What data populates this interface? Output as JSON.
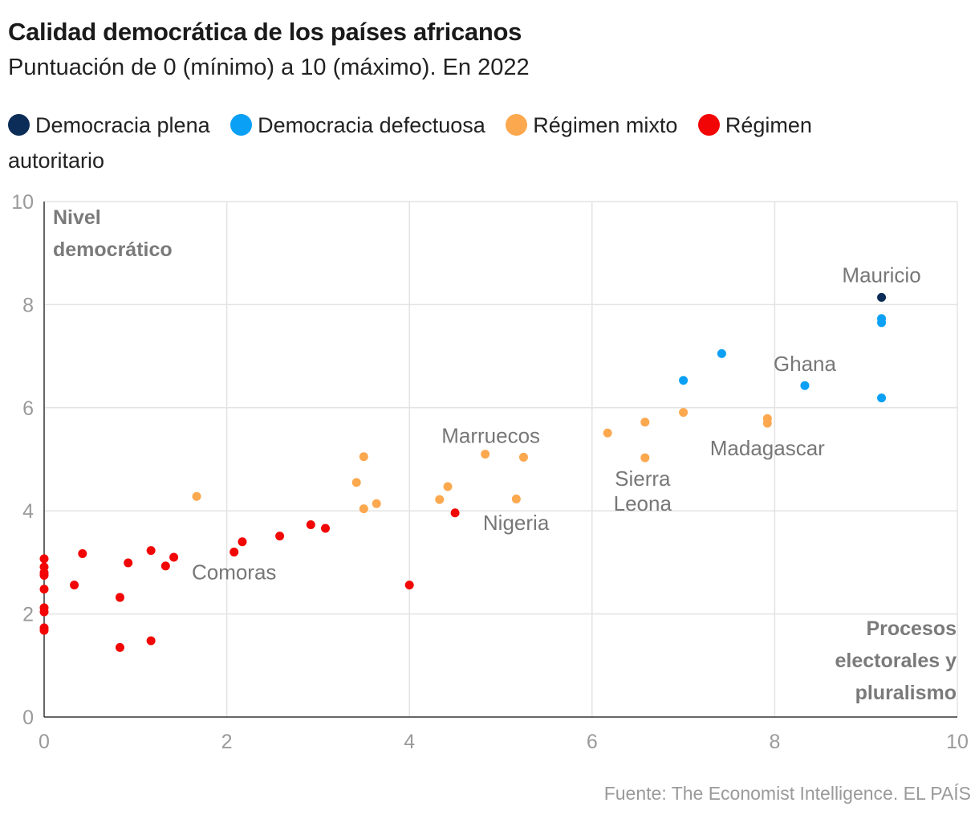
{
  "header": {
    "title": "Calidad democrática de los países africanos",
    "subtitle": "Puntuación de 0 (mínimo) a 10 (máximo). En 2022"
  },
  "legend": [
    {
      "label": "Democracia plena",
      "color": "#0b2d57"
    },
    {
      "label": "Democracia defectuosa",
      "color": "#0aa0f5"
    },
    {
      "label": "Régimen mixto",
      "color": "#fca84f"
    },
    {
      "label": "Régimen autoritario",
      "color": "#f20505"
    }
  ],
  "source": "Fuente: The Economist Intelligence. EL PAÍS",
  "chart_data": {
    "type": "scatter",
    "title": "Calidad democrática de los países africanos",
    "subtitle": "Puntuación de 0 (mínimo) a 10 (máximo). En 2022",
    "xlabel": "Procesos electorales y pluralismo",
    "ylabel": "Nivel democrático",
    "xlim": [
      0,
      10
    ],
    "ylim": [
      0,
      10
    ],
    "xticks": [
      0,
      2,
      4,
      6,
      8,
      10
    ],
    "yticks": [
      0,
      2,
      4,
      6,
      8,
      10
    ],
    "grid": true,
    "legend_position": "top",
    "series": [
      {
        "name": "Democracia plena",
        "color": "#0b2d57",
        "points": [
          [
            9.17,
            8.14
          ]
        ]
      },
      {
        "name": "Democracia defectuosa",
        "color": "#0aa0f5",
        "points": [
          [
            9.17,
            7.73
          ],
          [
            9.17,
            7.65
          ],
          [
            7.42,
            7.05
          ],
          [
            7.0,
            6.53
          ],
          [
            8.33,
            6.43
          ],
          [
            9.17,
            6.19
          ]
        ]
      },
      {
        "name": "Régimen mixto",
        "color": "#fca84f",
        "points": [
          [
            7.0,
            5.91
          ],
          [
            7.92,
            5.79
          ],
          [
            7.92,
            5.7
          ],
          [
            6.58,
            5.72
          ],
          [
            6.17,
            5.51
          ],
          [
            6.58,
            5.03
          ],
          [
            3.5,
            5.05
          ],
          [
            4.83,
            5.1
          ],
          [
            5.25,
            5.04
          ],
          [
            3.42,
            4.55
          ],
          [
            4.42,
            4.47
          ],
          [
            1.67,
            4.28
          ],
          [
            4.33,
            4.22
          ],
          [
            5.17,
            4.23
          ],
          [
            3.64,
            4.14
          ],
          [
            3.5,
            4.04
          ]
        ]
      },
      {
        "name": "Régimen autoritario",
        "color": "#f20505",
        "points": [
          [
            4.5,
            3.96
          ],
          [
            2.92,
            3.73
          ],
          [
            3.08,
            3.66
          ],
          [
            2.58,
            3.51
          ],
          [
            2.17,
            3.4
          ],
          [
            1.17,
            3.23
          ],
          [
            2.08,
            3.2
          ],
          [
            0.42,
            3.17
          ],
          [
            1.42,
            3.1
          ],
          [
            0.0,
            3.07
          ],
          [
            0.92,
            2.99
          ],
          [
            1.33,
            2.93
          ],
          [
            0.0,
            2.91
          ],
          [
            0.0,
            2.8
          ],
          [
            0.0,
            2.75
          ],
          [
            0.33,
            2.56
          ],
          [
            4.0,
            2.56
          ],
          [
            0.0,
            2.48
          ],
          [
            0.83,
            2.32
          ],
          [
            0.0,
            2.12
          ],
          [
            0.0,
            2.04
          ],
          [
            0.0,
            1.73
          ],
          [
            0.0,
            1.68
          ],
          [
            1.17,
            1.48
          ],
          [
            0.83,
            1.35
          ]
        ]
      }
    ],
    "annotations": [
      {
        "text": "Mauricio",
        "x": 9.17,
        "y": 8.14
      },
      {
        "text": "Ghana",
        "x": 8.33,
        "y": 6.43
      },
      {
        "text": "Marruecos",
        "x": 4.83,
        "y": 5.1
      },
      {
        "text": "Madagascar",
        "x": 7.92,
        "y": 5.7
      },
      {
        "text": "Sierra Leona",
        "x": 6.58,
        "y": 5.03
      },
      {
        "text": "Nigeria",
        "x": 4.5,
        "y": 3.96
      },
      {
        "text": "Comoras",
        "x": 2.08,
        "y": 3.2
      }
    ]
  }
}
